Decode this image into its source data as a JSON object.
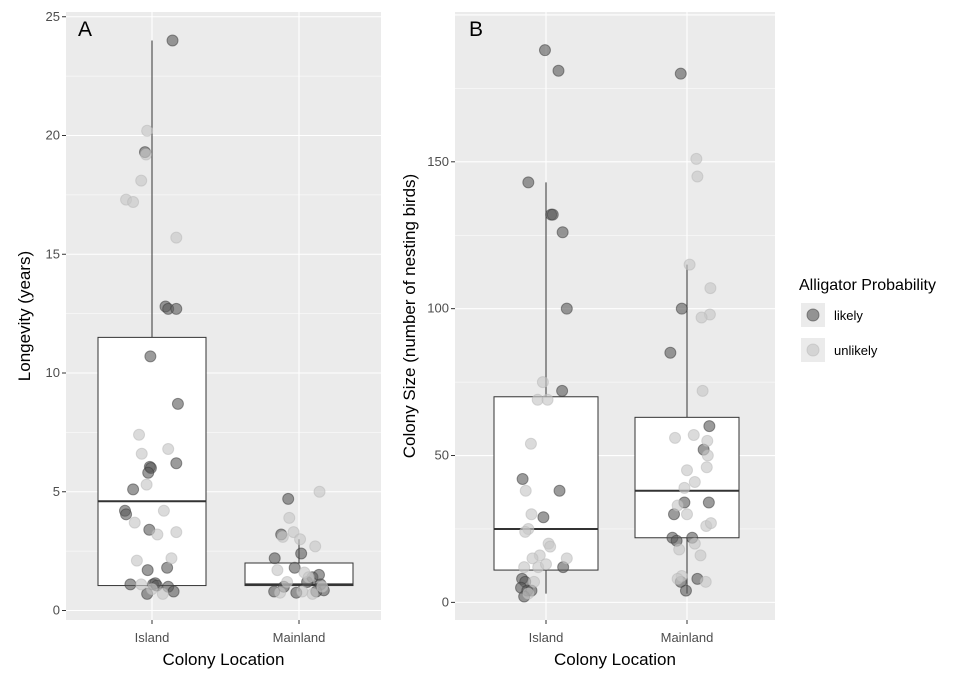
{
  "colors": {
    "panel_background": "#ebebeb",
    "grid": "#ffffff",
    "box_fill": "#ffffff",
    "box_line": "#333333",
    "likely": "#595959",
    "unlikely": "#c8c8c8"
  },
  "legend": {
    "title": "Alligator Probability",
    "items": [
      {
        "key": "likely",
        "label": "likely",
        "color": "#595959"
      },
      {
        "key": "unlikely",
        "label": "unlikely",
        "color": "#c8c8c8"
      }
    ]
  },
  "chart_data": [
    {
      "panel": "A",
      "type": "scatter",
      "title": "",
      "xlabel": "Colony Location",
      "ylabel": "Longevity (years)",
      "categories": [
        "Island",
        "Mainland"
      ],
      "ylim": [
        -0.4,
        25.2
      ],
      "yticks": [
        0,
        5,
        10,
        15,
        20,
        25
      ],
      "grid": true,
      "boxes": [
        {
          "category": "Island",
          "whisker_low": 1,
          "q1": 1.05,
          "median": 4.6,
          "q3": 11.5,
          "whisker_high": 24
        },
        {
          "category": "Mainland",
          "whisker_low": 0.8,
          "q1": 1.05,
          "median": 1.1,
          "q3": 2,
          "whisker_high": 3
        }
      ],
      "series": [
        {
          "name": "likely",
          "points": [
            {
              "x": "Island",
              "jitter": 0.38,
              "y": 24
            },
            {
              "x": "Island",
              "jitter": -0.13,
              "y": 19.3
            },
            {
              "x": "Island",
              "jitter": 0.25,
              "y": 12.8
            },
            {
              "x": "Island",
              "jitter": 0.3,
              "y": 12.7
            },
            {
              "x": "Island",
              "jitter": 0.45,
              "y": 12.7
            },
            {
              "x": "Island",
              "jitter": -0.03,
              "y": 10.7
            },
            {
              "x": "Island",
              "jitter": 0.48,
              "y": 8.7
            },
            {
              "x": "Island",
              "jitter": 0.45,
              "y": 6.2
            },
            {
              "x": "Island",
              "jitter": -0.04,
              "y": 6.05
            },
            {
              "x": "Island",
              "jitter": -0.02,
              "y": 6.0
            },
            {
              "x": "Island",
              "jitter": -0.07,
              "y": 5.8
            },
            {
              "x": "Island",
              "jitter": -0.35,
              "y": 5.1
            },
            {
              "x": "Island",
              "jitter": -0.5,
              "y": 4.2
            },
            {
              "x": "Island",
              "jitter": -0.48,
              "y": 4.05
            },
            {
              "x": "Island",
              "jitter": -0.05,
              "y": 3.4
            },
            {
              "x": "Island",
              "jitter": -0.08,
              "y": 1.7
            },
            {
              "x": "Island",
              "jitter": 0.28,
              "y": 1.8
            },
            {
              "x": "Island",
              "jitter": -0.4,
              "y": 1.1
            },
            {
              "x": "Island",
              "jitter": 0.02,
              "y": 1.1
            },
            {
              "x": "Island",
              "jitter": 0.06,
              "y": 1.15
            },
            {
              "x": "Island",
              "jitter": 0.09,
              "y": 1.05
            },
            {
              "x": "Island",
              "jitter": 0.3,
              "y": 1.0
            },
            {
              "x": "Island",
              "jitter": 0.4,
              "y": 0.8
            },
            {
              "x": "Island",
              "jitter": -0.09,
              "y": 0.7
            },
            {
              "x": "Mainland",
              "jitter": -0.45,
              "y": 2.2
            },
            {
              "x": "Mainland",
              "jitter": -0.2,
              "y": 4.7
            },
            {
              "x": "Mainland",
              "jitter": -0.33,
              "y": 3.2
            },
            {
              "x": "Mainland",
              "jitter": -0.28,
              "y": 1.0
            },
            {
              "x": "Mainland",
              "jitter": -0.46,
              "y": 0.8
            },
            {
              "x": "Mainland",
              "jitter": -0.08,
              "y": 1.8
            },
            {
              "x": "Mainland",
              "jitter": 0.04,
              "y": 2.4
            },
            {
              "x": "Mainland",
              "jitter": 0.15,
              "y": 1.2
            },
            {
              "x": "Mainland",
              "jitter": 0.25,
              "y": 1.4
            },
            {
              "x": "Mainland",
              "jitter": 0.37,
              "y": 1.5
            },
            {
              "x": "Mainland",
              "jitter": 0.4,
              "y": 1.1
            },
            {
              "x": "Mainland",
              "jitter": 0.46,
              "y": 0.85
            },
            {
              "x": "Mainland",
              "jitter": 0.32,
              "y": 0.8
            },
            {
              "x": "Mainland",
              "jitter": -0.05,
              "y": 0.75
            }
          ]
        },
        {
          "name": "unlikely",
          "points": [
            {
              "x": "Island",
              "jitter": -0.09,
              "y": 20.2
            },
            {
              "x": "Island",
              "jitter": -0.11,
              "y": 19.2
            },
            {
              "x": "Island",
              "jitter": -0.48,
              "y": 17.3
            },
            {
              "x": "Island",
              "jitter": -0.35,
              "y": 17.2
            },
            {
              "x": "Island",
              "jitter": -0.2,
              "y": 18.1
            },
            {
              "x": "Island",
              "jitter": 0.45,
              "y": 15.7
            },
            {
              "x": "Island",
              "jitter": -0.24,
              "y": 7.4
            },
            {
              "x": "Island",
              "jitter": 0.3,
              "y": 6.8
            },
            {
              "x": "Island",
              "jitter": -0.19,
              "y": 6.6
            },
            {
              "x": "Island",
              "jitter": -0.1,
              "y": 5.3
            },
            {
              "x": "Island",
              "jitter": -0.32,
              "y": 3.7
            },
            {
              "x": "Island",
              "jitter": 0.45,
              "y": 3.3
            },
            {
              "x": "Island",
              "jitter": 0.22,
              "y": 4.2
            },
            {
              "x": "Island",
              "jitter": 0.36,
              "y": 2.2
            },
            {
              "x": "Island",
              "jitter": -0.28,
              "y": 2.1
            },
            {
              "x": "Island",
              "jitter": 0.1,
              "y": 3.2
            },
            {
              "x": "Island",
              "jitter": -0.2,
              "y": 1.1
            },
            {
              "x": "Island",
              "jitter": 0.0,
              "y": 0.9
            },
            {
              "x": "Island",
              "jitter": 0.2,
              "y": 0.7
            },
            {
              "x": "Mainland",
              "jitter": -0.3,
              "y": 3.1
            },
            {
              "x": "Mainland",
              "jitter": -0.18,
              "y": 3.9
            },
            {
              "x": "Mainland",
              "jitter": -0.4,
              "y": 1.7
            },
            {
              "x": "Mainland",
              "jitter": -0.1,
              "y": 3.3
            },
            {
              "x": "Mainland",
              "jitter": 0.02,
              "y": 3.0
            },
            {
              "x": "Mainland",
              "jitter": 0.1,
              "y": 1.6
            },
            {
              "x": "Mainland",
              "jitter": 0.38,
              "y": 5.0
            },
            {
              "x": "Mainland",
              "jitter": 0.3,
              "y": 2.7
            },
            {
              "x": "Mainland",
              "jitter": 0.18,
              "y": 1.4
            },
            {
              "x": "Mainland",
              "jitter": -0.22,
              "y": 1.2
            },
            {
              "x": "Mainland",
              "jitter": 0.25,
              "y": 0.7
            },
            {
              "x": "Mainland",
              "jitter": 0.43,
              "y": 1.0
            },
            {
              "x": "Mainland",
              "jitter": -0.35,
              "y": 0.75
            },
            {
              "x": "Mainland",
              "jitter": 0.06,
              "y": 0.8
            }
          ]
        }
      ]
    },
    {
      "panel": "B",
      "type": "scatter",
      "title": "",
      "xlabel": "Colony Location",
      "ylabel": "Colony Size (number of nesting birds)",
      "categories": [
        "Island",
        "Mainland"
      ],
      "ylim": [
        -6,
        201
      ],
      "yticks": [
        0,
        50,
        100,
        150
      ],
      "grid": true,
      "boxes": [
        {
          "category": "Island",
          "whisker_low": 3,
          "q1": 11,
          "median": 25,
          "q3": 70,
          "whisker_high": 143
        },
        {
          "category": "Mainland",
          "whisker_low": 3,
          "q1": 22,
          "median": 38,
          "q3": 63,
          "whisker_high": 115
        }
      ],
      "series": [
        {
          "name": "likely",
          "points": [
            {
              "x": "Island",
              "jitter": -0.02,
              "y": 188
            },
            {
              "x": "Island",
              "jitter": 0.24,
              "y": 181
            },
            {
              "x": "Island",
              "jitter": -0.34,
              "y": 143
            },
            {
              "x": "Island",
              "jitter": 0.1,
              "y": 132
            },
            {
              "x": "Island",
              "jitter": 0.13,
              "y": 132
            },
            {
              "x": "Island",
              "jitter": 0.32,
              "y": 126
            },
            {
              "x": "Island",
              "jitter": 0.4,
              "y": 100
            },
            {
              "x": "Island",
              "jitter": 0.31,
              "y": 72
            },
            {
              "x": "Island",
              "jitter": -0.45,
              "y": 42
            },
            {
              "x": "Island",
              "jitter": 0.26,
              "y": 38
            },
            {
              "x": "Island",
              "jitter": -0.05,
              "y": 29
            },
            {
              "x": "Island",
              "jitter": 0.33,
              "y": 12
            },
            {
              "x": "Island",
              "jitter": -0.46,
              "y": 8
            },
            {
              "x": "Island",
              "jitter": -0.4,
              "y": 7
            },
            {
              "x": "Island",
              "jitter": -0.48,
              "y": 5
            },
            {
              "x": "Island",
              "jitter": -0.36,
              "y": 4
            },
            {
              "x": "Island",
              "jitter": -0.28,
              "y": 4
            },
            {
              "x": "Island",
              "jitter": -0.42,
              "y": 2
            },
            {
              "x": "Mainland",
              "jitter": -0.12,
              "y": 180
            },
            {
              "x": "Mainland",
              "jitter": -0.32,
              "y": 85
            },
            {
              "x": "Mainland",
              "jitter": -0.1,
              "y": 100
            },
            {
              "x": "Mainland",
              "jitter": 0.43,
              "y": 60
            },
            {
              "x": "Mainland",
              "jitter": 0.32,
              "y": 52
            },
            {
              "x": "Mainland",
              "jitter": -0.25,
              "y": 30
            },
            {
              "x": "Mainland",
              "jitter": -0.28,
              "y": 22
            },
            {
              "x": "Mainland",
              "jitter": -0.05,
              "y": 34
            },
            {
              "x": "Mainland",
              "jitter": 0.42,
              "y": 34
            },
            {
              "x": "Mainland",
              "jitter": -0.2,
              "y": 21
            },
            {
              "x": "Mainland",
              "jitter": 0.2,
              "y": 8
            },
            {
              "x": "Mainland",
              "jitter": -0.12,
              "y": 7
            },
            {
              "x": "Mainland",
              "jitter": -0.02,
              "y": 4
            },
            {
              "x": "Mainland",
              "jitter": 0.1,
              "y": 22
            }
          ]
        },
        {
          "name": "unlikely",
          "points": [
            {
              "x": "Island",
              "jitter": -0.06,
              "y": 75
            },
            {
              "x": "Island",
              "jitter": -0.16,
              "y": 69
            },
            {
              "x": "Island",
              "jitter": 0.03,
              "y": 69
            },
            {
              "x": "Island",
              "jitter": -0.29,
              "y": 54
            },
            {
              "x": "Island",
              "jitter": -0.39,
              "y": 38
            },
            {
              "x": "Island",
              "jitter": -0.28,
              "y": 30
            },
            {
              "x": "Island",
              "jitter": -0.34,
              "y": 25
            },
            {
              "x": "Island",
              "jitter": -0.4,
              "y": 24
            },
            {
              "x": "Island",
              "jitter": 0.05,
              "y": 20
            },
            {
              "x": "Island",
              "jitter": 0.08,
              "y": 19
            },
            {
              "x": "Island",
              "jitter": 0.4,
              "y": 15
            },
            {
              "x": "Island",
              "jitter": -0.12,
              "y": 16
            },
            {
              "x": "Island",
              "jitter": -0.26,
              "y": 15
            },
            {
              "x": "Island",
              "jitter": -0.15,
              "y": 12
            },
            {
              "x": "Island",
              "jitter": 0.0,
              "y": 13
            },
            {
              "x": "Island",
              "jitter": -0.42,
              "y": 12
            },
            {
              "x": "Island",
              "jitter": -0.23,
              "y": 7
            },
            {
              "x": "Island",
              "jitter": -0.34,
              "y": 3
            },
            {
              "x": "Mainland",
              "jitter": 0.18,
              "y": 151
            },
            {
              "x": "Mainland",
              "jitter": 0.2,
              "y": 145
            },
            {
              "x": "Mainland",
              "jitter": 0.05,
              "y": 115
            },
            {
              "x": "Mainland",
              "jitter": 0.45,
              "y": 107
            },
            {
              "x": "Mainland",
              "jitter": 0.44,
              "y": 98
            },
            {
              "x": "Mainland",
              "jitter": 0.28,
              "y": 97
            },
            {
              "x": "Mainland",
              "jitter": 0.3,
              "y": 72
            },
            {
              "x": "Mainland",
              "jitter": -0.23,
              "y": 56
            },
            {
              "x": "Mainland",
              "jitter": 0.13,
              "y": 57
            },
            {
              "x": "Mainland",
              "jitter": 0.39,
              "y": 55
            },
            {
              "x": "Mainland",
              "jitter": 0.4,
              "y": 50
            },
            {
              "x": "Mainland",
              "jitter": 0.38,
              "y": 46
            },
            {
              "x": "Mainland",
              "jitter": 0.0,
              "y": 45
            },
            {
              "x": "Mainland",
              "jitter": -0.05,
              "y": 39
            },
            {
              "x": "Mainland",
              "jitter": 0.15,
              "y": 41
            },
            {
              "x": "Mainland",
              "jitter": -0.18,
              "y": 33
            },
            {
              "x": "Mainland",
              "jitter": 0.0,
              "y": 30
            },
            {
              "x": "Mainland",
              "jitter": 0.37,
              "y": 26
            },
            {
              "x": "Mainland",
              "jitter": 0.46,
              "y": 27
            },
            {
              "x": "Mainland",
              "jitter": 0.15,
              "y": 20
            },
            {
              "x": "Mainland",
              "jitter": 0.26,
              "y": 16
            },
            {
              "x": "Mainland",
              "jitter": -0.15,
              "y": 18
            },
            {
              "x": "Mainland",
              "jitter": -0.1,
              "y": 9
            },
            {
              "x": "Mainland",
              "jitter": -0.18,
              "y": 8
            },
            {
              "x": "Mainland",
              "jitter": 0.36,
              "y": 7
            }
          ]
        }
      ]
    }
  ]
}
